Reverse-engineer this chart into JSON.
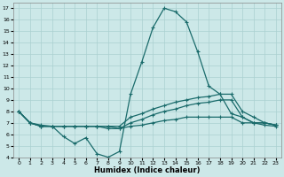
{
  "xlabel": "Humidex (Indice chaleur)",
  "xlim": [
    -0.5,
    23.5
  ],
  "ylim": [
    4,
    17.5
  ],
  "xticks": [
    0,
    1,
    2,
    3,
    4,
    5,
    6,
    7,
    8,
    9,
    10,
    11,
    12,
    13,
    14,
    15,
    16,
    17,
    18,
    19,
    20,
    21,
    22,
    23
  ],
  "yticks": [
    4,
    5,
    6,
    7,
    8,
    9,
    10,
    11,
    12,
    13,
    14,
    15,
    16,
    17
  ],
  "bg_color": "#cce8e8",
  "line_color": "#1a6b6b",
  "grid_color": "#aad0d0",
  "series": [
    {
      "x": [
        0,
        1,
        2,
        3,
        4,
        5,
        6,
        7,
        8,
        9,
        10,
        11,
        12,
        13,
        14,
        15,
        16,
        17,
        18,
        19,
        20,
        21,
        22,
        23
      ],
      "y": [
        8.0,
        7.0,
        6.8,
        6.7,
        5.8,
        5.2,
        5.7,
        4.3,
        4.0,
        4.5,
        9.5,
        12.3,
        15.3,
        17.0,
        16.7,
        15.8,
        13.2,
        10.2,
        9.5,
        7.8,
        7.5,
        7.0,
        6.8,
        6.7
      ]
    },
    {
      "x": [
        0,
        1,
        2,
        3,
        4,
        5,
        6,
        7,
        8,
        9,
        10,
        11,
        12,
        13,
        14,
        15,
        16,
        17,
        18,
        19,
        20,
        21,
        22,
        23
      ],
      "y": [
        8.0,
        7.0,
        6.7,
        6.7,
        6.7,
        6.7,
        6.7,
        6.7,
        6.7,
        6.7,
        7.5,
        7.8,
        8.2,
        8.5,
        8.8,
        9.0,
        9.2,
        9.3,
        9.5,
        9.5,
        8.0,
        7.5,
        7.0,
        6.8
      ]
    },
    {
      "x": [
        0,
        1,
        2,
        3,
        4,
        5,
        6,
        7,
        8,
        9,
        10,
        11,
        12,
        13,
        14,
        15,
        16,
        17,
        18,
        19,
        20,
        21,
        22,
        23
      ],
      "y": [
        8.0,
        7.0,
        6.7,
        6.7,
        6.7,
        6.7,
        6.7,
        6.7,
        6.7,
        6.5,
        7.0,
        7.3,
        7.7,
        8.0,
        8.2,
        8.5,
        8.7,
        8.8,
        9.0,
        9.0,
        7.5,
        7.0,
        7.0,
        6.8
      ]
    },
    {
      "x": [
        0,
        1,
        2,
        3,
        4,
        5,
        6,
        7,
        8,
        9,
        10,
        11,
        12,
        13,
        14,
        15,
        16,
        17,
        18,
        19,
        20,
        21,
        22,
        23
      ],
      "y": [
        8.0,
        7.0,
        6.7,
        6.7,
        6.7,
        6.7,
        6.7,
        6.7,
        6.5,
        6.5,
        6.7,
        6.8,
        7.0,
        7.2,
        7.3,
        7.5,
        7.5,
        7.5,
        7.5,
        7.5,
        7.0,
        7.0,
        7.0,
        6.8
      ]
    }
  ]
}
